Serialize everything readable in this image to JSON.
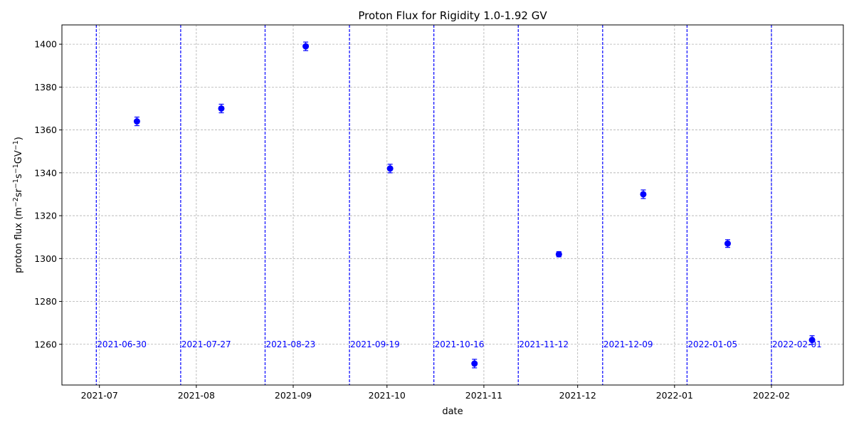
{
  "chart_data": {
    "type": "scatter",
    "title": "Proton Flux for Rigidity 1.0-1.92 GV",
    "xlabel": "date",
    "ylabel_parts": {
      "prefix": "proton flux (m",
      "sup1": "−2",
      "mid1": "sr",
      "sup2": "−1",
      "mid2": "s",
      "sup3": "−1",
      "mid3": "GV",
      "sup4": "−1",
      "suffix": ")"
    },
    "xlim": [
      "2021-06-19",
      "2022-02-24"
    ],
    "ylim": [
      1241,
      1409
    ],
    "yticks": [
      1260,
      1280,
      1300,
      1320,
      1340,
      1360,
      1380,
      1400
    ],
    "xticks": [
      {
        "date": "2021-07-01",
        "label": "2021-07"
      },
      {
        "date": "2021-08-01",
        "label": "2021-08"
      },
      {
        "date": "2021-09-01",
        "label": "2021-09"
      },
      {
        "date": "2021-10-01",
        "label": "2021-10"
      },
      {
        "date": "2021-11-01",
        "label": "2021-11"
      },
      {
        "date": "2021-12-01",
        "label": "2021-12"
      },
      {
        "date": "2022-01-01",
        "label": "2022-01"
      },
      {
        "date": "2022-02-01",
        "label": "2022-02"
      }
    ],
    "grid": true,
    "point_color": "#0000ff",
    "points": [
      {
        "date": "2021-07-13",
        "y": 1364,
        "err": 2.0
      },
      {
        "date": "2021-08-09",
        "y": 1370,
        "err": 2.0
      },
      {
        "date": "2021-09-05",
        "y": 1399,
        "err": 2.0
      },
      {
        "date": "2021-10-02",
        "y": 1342,
        "err": 2.0
      },
      {
        "date": "2021-10-29",
        "y": 1251,
        "err": 2.0
      },
      {
        "date": "2021-11-25",
        "y": 1302,
        "err": 1.2
      },
      {
        "date": "2021-12-22",
        "y": 1330,
        "err": 2.0
      },
      {
        "date": "2022-01-18",
        "y": 1307,
        "err": 1.8
      },
      {
        "date": "2022-02-14",
        "y": 1262,
        "err": 2.0
      }
    ],
    "event_lines": [
      {
        "date": "2021-06-30",
        "label": "2021-06-30"
      },
      {
        "date": "2021-07-27",
        "label": "2021-07-27"
      },
      {
        "date": "2021-08-23",
        "label": "2021-08-23"
      },
      {
        "date": "2021-09-19",
        "label": "2021-09-19"
      },
      {
        "date": "2021-10-16",
        "label": "2021-10-16"
      },
      {
        "date": "2021-11-12",
        "label": "2021-11-12"
      },
      {
        "date": "2021-12-09",
        "label": "2021-12-09"
      },
      {
        "date": "2022-01-05",
        "label": "2022-01-05"
      },
      {
        "date": "2022-02-01",
        "label": "2022-02-01"
      }
    ],
    "event_label_y": 1260,
    "event_line_color": "#0000ff"
  }
}
